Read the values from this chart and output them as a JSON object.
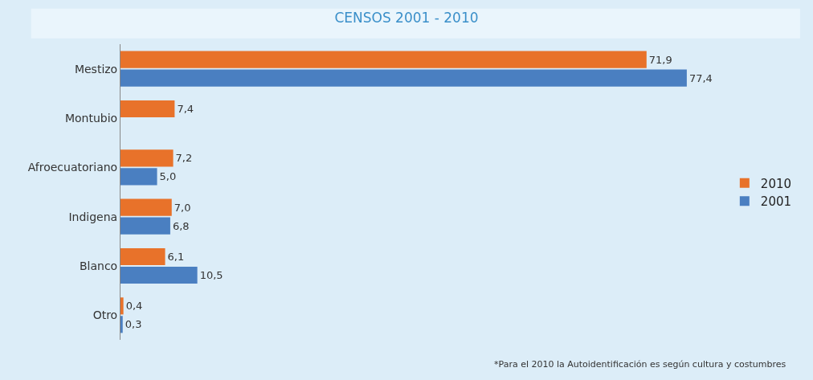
{
  "chart_data": {
    "type": "bar",
    "orientation": "horizontal",
    "title": "CENSOS 2001 - 2010",
    "categories": [
      "Mestizo",
      "Montubio",
      "Afroecuatoriano",
      "Indigena",
      "Blanco",
      "Otro"
    ],
    "series": [
      {
        "name": "2010",
        "color": "#e8722a",
        "values": [
          71.9,
          7.4,
          7.2,
          7.0,
          6.1,
          0.4
        ],
        "value_labels": [
          "71,9",
          "7,4",
          "7,2",
          "7,0",
          "6,1",
          "0,4"
        ]
      },
      {
        "name": "2001",
        "color": "#4a7fc1",
        "values": [
          77.4,
          null,
          5.0,
          6.8,
          10.5,
          0.3
        ],
        "value_labels": [
          "77,4",
          null,
          "5,0",
          "6,8",
          "10,5",
          "0,3"
        ]
      }
    ],
    "annotations": [
      "*Para el 2010 la Autoidentificación es según cultura y costumbres"
    ],
    "legend": "right",
    "grid": false,
    "tick_labels": "y"
  }
}
